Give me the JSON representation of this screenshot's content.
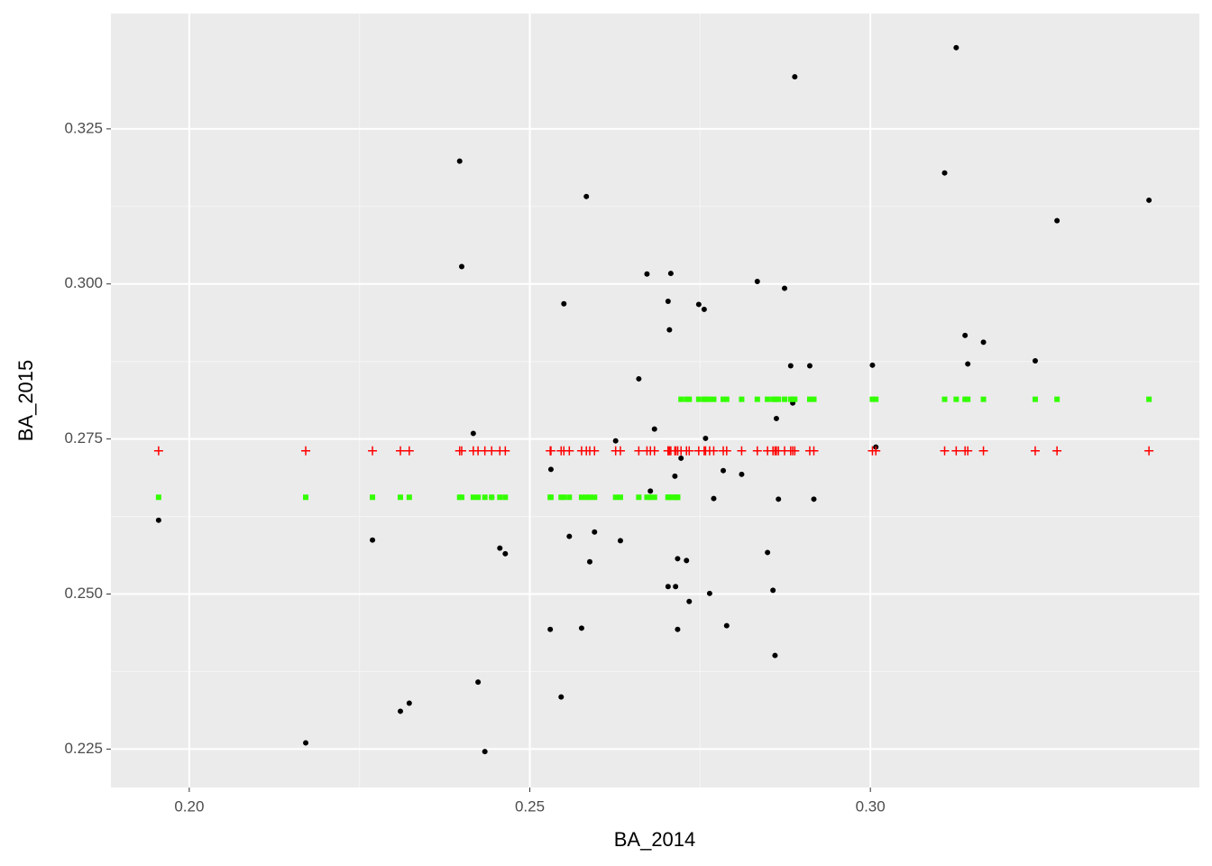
{
  "chart_data": {
    "type": "scatter",
    "x_label": "BA_2014",
    "y_label": "BA_2015",
    "xlim": [
      0.1885,
      0.3483
    ],
    "ylim": [
      0.2188,
      0.3436
    ],
    "xticks": [
      {
        "value": 0.2,
        "label": "0.20"
      },
      0.25,
      {
        "value": 0.3,
        "label": "0.30"
      }
    ],
    "yticks": [
      0.225,
      {
        "value": 0.25,
        "label": "0.250"
      },
      0.275,
      {
        "value": 0.3,
        "label": "0.300"
      },
      0.325
    ],
    "grid": true,
    "x": [
      0.1955,
      0.2171,
      0.2269,
      0.231,
      0.2323,
      0.2397,
      0.24,
      0.2417,
      0.2424,
      0.2434,
      0.2444,
      0.2456,
      0.2464,
      0.253,
      0.2531,
      0.2546,
      0.255,
      0.2558,
      0.2576,
      0.2583,
      0.2588,
      0.2595,
      0.2626,
      0.2633,
      0.266,
      0.2672,
      0.2677,
      0.2683,
      0.2703,
      0.2703,
      0.2705,
      0.2707,
      0.2713,
      0.2714,
      0.2717,
      0.2717,
      0.2722,
      0.273,
      0.2734,
      0.2748,
      0.2756,
      0.2758,
      0.2764,
      0.277,
      0.2784,
      0.2789,
      0.2811,
      0.2834,
      0.2849,
      0.2857,
      0.286,
      0.2862,
      0.2865,
      0.2874,
      0.2883,
      0.2886,
      0.2889,
      0.2911,
      0.2917,
      0.3003,
      0.3008,
      0.3109,
      0.3126,
      0.3139,
      0.3143,
      0.3166,
      0.3242,
      0.3274,
      0.3409
    ],
    "series": [
      {
        "color": "#000000",
        "marker": "dot",
        "values": [
          0.2619,
          0.226,
          0.2587,
          0.2311,
          0.2324,
          0.3198,
          0.3028,
          0.2759,
          0.2358,
          0.2246,
          0.2656,
          0.2574,
          0.2565,
          0.2443,
          0.2701,
          0.2334,
          0.2968,
          0.2593,
          0.2445,
          0.3141,
          0.2552,
          0.26,
          0.2747,
          0.2586,
          0.2847,
          0.3016,
          0.2666,
          0.2766,
          0.2972,
          0.2512,
          0.2926,
          0.3017,
          0.269,
          0.2512,
          0.2557,
          0.2443,
          0.2719,
          0.2554,
          0.2488,
          0.2967,
          0.2959,
          0.2751,
          0.2501,
          0.2654,
          0.2699,
          0.2449,
          0.2693,
          0.3004,
          0.2567,
          0.2506,
          0.2401,
          0.2783,
          0.2653,
          0.2993,
          0.2868,
          0.2808,
          0.3334,
          0.2868,
          0.2653,
          0.2869,
          0.2737,
          0.3179,
          0.3381,
          0.2917,
          0.2871,
          0.2906,
          0.2876,
          0.3102,
          0.3135
        ]
      },
      {
        "color": "#ff0000",
        "marker": "plus",
        "values": [
          0.2731,
          0.2731,
          0.2731,
          0.2731,
          0.2731,
          0.2731,
          0.2731,
          0.2731,
          0.2731,
          0.2731,
          0.2731,
          0.2731,
          0.2731,
          0.2731,
          0.2731,
          0.2731,
          0.2731,
          0.2731,
          0.2731,
          0.2731,
          0.2731,
          0.2731,
          0.2731,
          0.2731,
          0.2731,
          0.2731,
          0.2731,
          0.2731,
          0.2731,
          0.2731,
          0.2731,
          0.2731,
          0.2731,
          0.2731,
          0.2731,
          0.2731,
          0.2731,
          0.2731,
          0.2731,
          0.2731,
          0.2731,
          0.2731,
          0.2731,
          0.2731,
          0.2731,
          0.2731,
          0.2731,
          0.2731,
          0.2731,
          0.2731,
          0.2731,
          0.2731,
          0.2731,
          0.2731,
          0.2731,
          0.2731,
          0.2731,
          0.2731,
          0.2731,
          0.2731,
          0.2731,
          0.2731,
          0.2731,
          0.2731,
          0.2731,
          0.2731,
          0.2731,
          0.2731,
          0.2731
        ]
      },
      {
        "color": "#33ff00",
        "marker": "square",
        "values": [
          0.2656,
          0.2656,
          0.2656,
          0.2656,
          0.2656,
          0.2656,
          0.2656,
          0.2656,
          0.2656,
          0.2656,
          0.2656,
          0.2656,
          0.2656,
          0.2656,
          0.2656,
          0.2656,
          0.2656,
          0.2656,
          0.2656,
          0.2656,
          0.2656,
          0.2656,
          0.2656,
          0.2656,
          0.2656,
          0.2656,
          0.2656,
          0.2656,
          0.2656,
          0.2656,
          0.2656,
          0.2656,
          0.2656,
          0.2656,
          0.2656,
          0.2656,
          0.2814,
          0.2814,
          0.2814,
          0.2814,
          0.2814,
          0.2814,
          0.2814,
          0.2814,
          0.2814,
          0.2814,
          0.2814,
          0.2814,
          0.2814,
          0.2814,
          0.2814,
          0.2814,
          0.2814,
          0.2814,
          0.2814,
          0.2814,
          0.2814,
          0.2814,
          0.2814,
          0.2814,
          0.2814,
          0.2814,
          0.2814,
          0.2814,
          0.2814,
          0.2814,
          0.2814,
          0.2814,
          0.2814
        ]
      }
    ]
  }
}
